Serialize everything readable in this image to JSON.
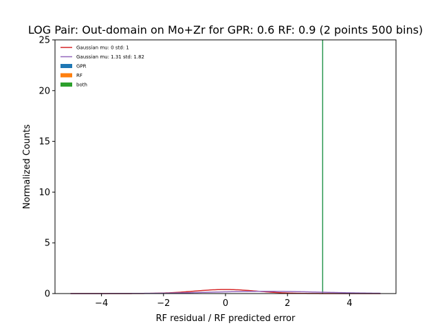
{
  "chart_data": {
    "type": "line",
    "title": "LOG Pair: Out-domain on Mo+Zr for GPR: 0.6 RF: 0.9 (2 points 500 bins)",
    "xlabel": "RF residual / RF predicted error",
    "ylabel": "Normalized Counts",
    "xlim": [
      -5.5,
      5.5
    ],
    "ylim": [
      0,
      25
    ],
    "xticks": [
      -4,
      -2,
      0,
      2,
      4
    ],
    "xtick_labels": [
      "−4",
      "−2",
      "0",
      "2",
      "4"
    ],
    "yticks": [
      0,
      5,
      10,
      15,
      20,
      25
    ],
    "ytick_labels": [
      "0",
      "5",
      "10",
      "15",
      "20",
      "25"
    ],
    "grid": false,
    "legend_placement": "top-left",
    "series": [
      {
        "name": "Gaussian mu: 0 std: 1",
        "kind": "line",
        "color": "#d62728",
        "mu": 0,
        "std": 1,
        "x_range": [
          -5,
          5
        ]
      },
      {
        "name": "Gaussian mu: 1.31 std: 1.82",
        "kind": "line",
        "color": "#9467bd",
        "mu": 1.31,
        "std": 1.82,
        "x_range": [
          -5,
          5
        ]
      },
      {
        "name": "GPR",
        "kind": "histogram",
        "color": "#1f77b4",
        "bins": [
          {
            "x0": 3.12,
            "x1": 3.15,
            "height": 25
          }
        ]
      },
      {
        "name": "RF",
        "kind": "histogram",
        "color": "#ff7f0e",
        "bins": []
      },
      {
        "name": "both",
        "kind": "histogram",
        "color": "#2ca02c",
        "bins": [
          {
            "x0": 3.12,
            "x1": 3.15,
            "height": 25
          }
        ]
      }
    ]
  }
}
